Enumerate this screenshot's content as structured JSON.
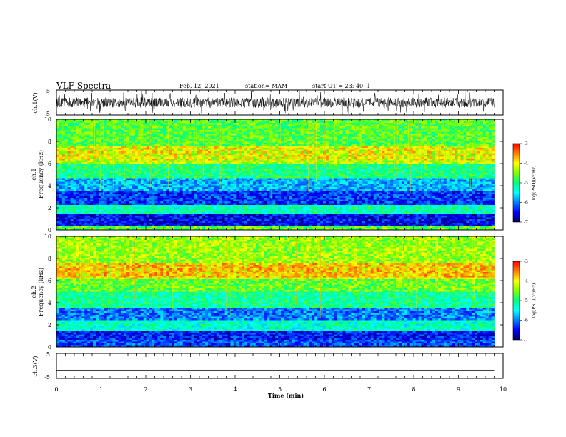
{
  "header": {
    "title": "VLF Spectra",
    "date": "Feb. 12, 2021",
    "station": "station= MAM",
    "start": "start  UT  =   23: 40: 1"
  },
  "chart_data": [
    {
      "type": "line",
      "panel": "ch1-waveform",
      "ylabel": "ch.1(V)",
      "yticks": [
        "5",
        "-5"
      ],
      "ylim": [
        -5,
        5
      ],
      "xlim": [
        0,
        10
      ],
      "note_visual": "dense noisy waveform",
      "waveform_amplitude": 2.0
    },
    {
      "type": "heatmap",
      "panel": "ch1-spectrogram",
      "ylabel": [
        "ch.1",
        "Frequency (kHz)"
      ],
      "yticks": [
        "0",
        "2",
        "4",
        "6",
        "8",
        "10"
      ],
      "ylim": [
        0,
        10
      ],
      "xlim": [
        0,
        10
      ],
      "data_end_min": 9.8,
      "colorbar": {
        "label": "log(PSD)(V²/Hz)",
        "ticks": [
          "-3",
          "-4",
          "-5",
          "-6",
          "-7"
        ],
        "range": [
          -7,
          -3
        ]
      },
      "bands": [
        {
          "from_khz": 0.0,
          "to_khz": 0.4,
          "level": -4.6
        },
        {
          "from_khz": 0.4,
          "to_khz": 1.5,
          "level": -6.5
        },
        {
          "from_khz": 1.5,
          "to_khz": 2.2,
          "level": -5.2
        },
        {
          "from_khz": 2.2,
          "to_khz": 3.6,
          "level": -6.3
        },
        {
          "from_khz": 3.6,
          "to_khz": 4.6,
          "level": -5.8
        },
        {
          "from_khz": 4.6,
          "to_khz": 6.0,
          "level": -5.0
        },
        {
          "from_khz": 6.0,
          "to_khz": 7.5,
          "level": -4.3
        },
        {
          "from_khz": 7.5,
          "to_khz": 10.0,
          "level": -4.7
        }
      ],
      "hot_band": {
        "center_khz": 6.9,
        "level": -3.8
      }
    },
    {
      "type": "heatmap",
      "panel": "ch2-spectrogram",
      "ylabel": [
        "ch.2",
        "Frequency (kHz)"
      ],
      "yticks": [
        "0",
        "2",
        "4",
        "6",
        "8",
        "10"
      ],
      "ylim": [
        0,
        10
      ],
      "xlim": [
        0,
        10
      ],
      "data_end_min": 9.8,
      "colorbar": {
        "label": "log(PSD)(V²/Hz)",
        "ticks": [
          "-3",
          "-4",
          "-5",
          "-6",
          "-7"
        ],
        "range": [
          -7,
          -3
        ]
      },
      "bands": [
        {
          "from_khz": 0.0,
          "to_khz": 0.6,
          "level": -6.2
        },
        {
          "from_khz": 0.6,
          "to_khz": 1.4,
          "level": -6.4
        },
        {
          "from_khz": 1.4,
          "to_khz": 2.4,
          "level": -5.3
        },
        {
          "from_khz": 2.4,
          "to_khz": 3.6,
          "level": -6.0
        },
        {
          "from_khz": 3.6,
          "to_khz": 5.0,
          "level": -5.1
        },
        {
          "from_khz": 5.0,
          "to_khz": 6.2,
          "level": -4.6
        },
        {
          "from_khz": 6.2,
          "to_khz": 7.6,
          "level": -4.0
        },
        {
          "from_khz": 7.6,
          "to_khz": 10.0,
          "level": -4.4
        }
      ],
      "hot_band": {
        "center_khz": 6.9,
        "level": -3.6
      }
    },
    {
      "type": "line",
      "panel": "ch3-waveform",
      "ylabel": "ch.3(V)",
      "yticks": [
        "5",
        "-5"
      ],
      "ylim": [
        -5,
        5
      ],
      "xlim": [
        0,
        10
      ],
      "constant_value": -1.8
    }
  ],
  "x_axis": {
    "label": "Time  (min)",
    "ticks": [
      "0",
      "1",
      "2",
      "3",
      "4",
      "5",
      "6",
      "7",
      "8",
      "9",
      "10"
    ],
    "range": [
      0,
      10
    ]
  }
}
